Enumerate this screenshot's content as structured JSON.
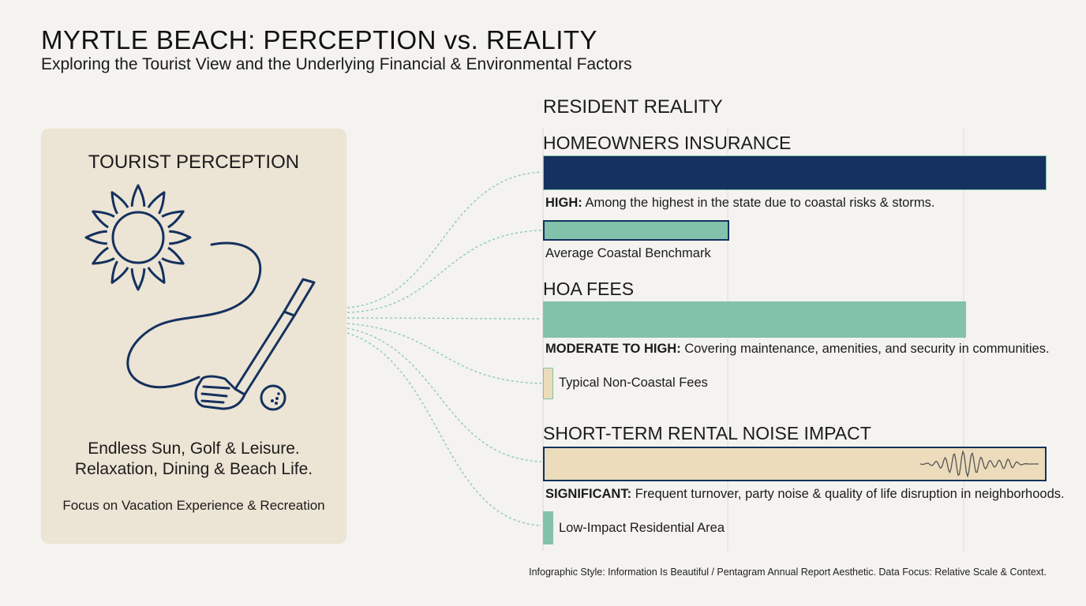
{
  "header": {
    "title": "MYRTLE BEACH: PERCEPTION vs. REALITY",
    "subtitle": "Exploring the Tourist View and the Underlying Financial & Environmental Factors"
  },
  "tourist": {
    "heading": "TOURIST PERCEPTION",
    "line1": "Endless Sun, Golf & Leisure.",
    "line2": "Relaxation, Dining & Beach Life.",
    "focus": "Focus on Vacation Experience & Recreation",
    "icons": [
      "sun-icon",
      "golf-club-icon",
      "golf-ball-icon"
    ]
  },
  "resident": {
    "heading": "RESIDENT REALITY"
  },
  "colors": {
    "navy": "#14315f",
    "teal": "#82c2aa",
    "sand": "#ecdcbc",
    "panel": "#ece4d4",
    "connector": "#8fc9b1"
  },
  "chart_data": {
    "type": "bar",
    "scale": "relative",
    "grid": true,
    "metrics": [
      {
        "title": "HOMEOWNERS INSURANCE",
        "value": 1.0,
        "color": "#14315f",
        "level": "HIGH:",
        "description": "Among the highest in the state due to coastal risks & storms.",
        "benchmark": {
          "label": "Average Coastal Benchmark",
          "value": 0.37,
          "color": "#82c2aa"
        }
      },
      {
        "title": "HOA FEES",
        "value": 0.84,
        "color": "#82c2aa",
        "level": "MODERATE TO HIGH:",
        "description": "Covering maintenance, amenities, and security in communities.",
        "benchmark": {
          "label": "Typical Non-Coastal Fees",
          "value": 0.02,
          "color": "#ecdcbc"
        }
      },
      {
        "title": "SHORT-TERM RENTAL NOISE IMPACT",
        "value": 1.0,
        "color": "#ecdcbc",
        "level": "SIGNIFICANT:",
        "description": "Frequent turnover, party noise & quality of life disruption in neighborhoods.",
        "benchmark": {
          "label": "Low-Impact Residential Area",
          "value": 0.02,
          "color": "#82c2aa"
        }
      }
    ]
  },
  "footer": {
    "note": "Infographic Style: Information Is Beautiful / Pentagram Annual Report Aesthetic. Data Focus: Relative Scale & Context."
  }
}
